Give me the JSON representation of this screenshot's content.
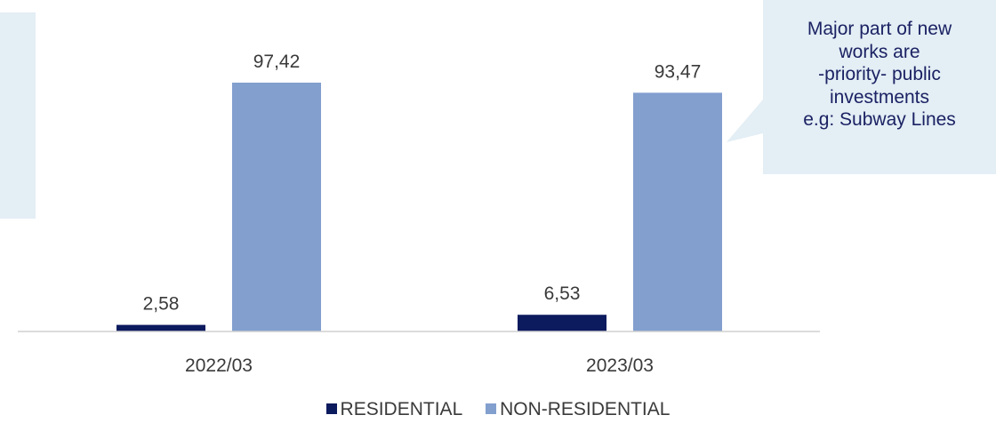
{
  "chart_data": {
    "type": "bar",
    "categories": [
      "2022/03",
      "2023/03"
    ],
    "series": [
      {
        "name": "RESIDENTIAL",
        "values": [
          2.58,
          6.53
        ],
        "labels": [
          "2,58",
          "6,53"
        ],
        "color": "#0c1a5e"
      },
      {
        "name": "NON-RESIDENTIAL",
        "values": [
          97.42,
          93.47
        ],
        "labels": [
          "97,42",
          "93,47"
        ],
        "color": "#829fce"
      }
    ],
    "ylim": [
      0,
      100
    ],
    "grid": false,
    "legend_position": "bottom"
  },
  "callout": {
    "lines": [
      "Major part of new",
      "works are",
      "-priority- public",
      "investments",
      "e.g: Subway Lines"
    ]
  },
  "colors": {
    "panel_background": "#e3eef5",
    "callout_text": "#1b2263",
    "axis": "#d0d0d0",
    "text": "#3a3a3a"
  }
}
